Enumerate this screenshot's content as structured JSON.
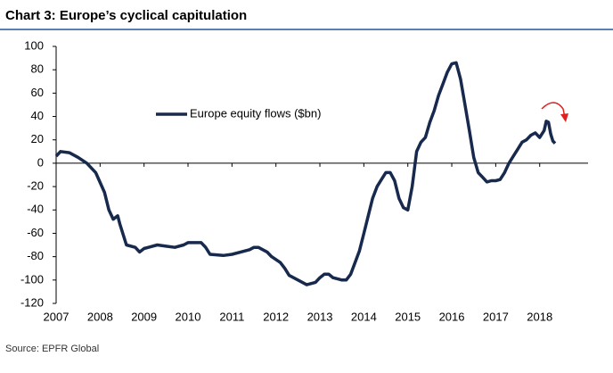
{
  "chart_data": {
    "type": "line",
    "title": "Chart 3: Europe’s cyclical capitulation",
    "source": "Source: EPFR Global",
    "x": [
      2007.0,
      2007.1,
      2007.3,
      2007.5,
      2007.7,
      2007.9,
      2008.1,
      2008.2,
      2008.3,
      2008.4,
      2008.45,
      2008.6,
      2008.8,
      2008.9,
      2009.0,
      2009.1,
      2009.3,
      2009.5,
      2009.7,
      2009.9,
      2010.0,
      2010.3,
      2010.4,
      2010.5,
      2010.8,
      2011.0,
      2011.2,
      2011.4,
      2011.5,
      2011.6,
      2011.8,
      2011.9,
      2012.1,
      2012.2,
      2012.3,
      2012.5,
      2012.7,
      2012.9,
      2013.0,
      2013.1,
      2013.2,
      2013.3,
      2013.5,
      2013.6,
      2013.7,
      2013.8,
      2013.9,
      2014.0,
      2014.1,
      2014.2,
      2014.3,
      2014.4,
      2014.5,
      2014.6,
      2014.7,
      2014.8,
      2014.9,
      2015.0,
      2015.1,
      2015.2,
      2015.3,
      2015.4,
      2015.5,
      2015.6,
      2015.7,
      2015.8,
      2015.9,
      2016.0,
      2016.1,
      2016.2,
      2016.3,
      2016.4,
      2016.5,
      2016.6,
      2016.7,
      2016.8,
      2016.9,
      2017.0,
      2017.1,
      2017.2,
      2017.3,
      2017.4,
      2017.5,
      2017.6,
      2017.7,
      2017.8,
      2017.9,
      2018.0,
      2018.1,
      2018.15,
      2018.2,
      2018.25,
      2018.3,
      2018.35
    ],
    "series": [
      {
        "name": "Europe equity flows ($bn)",
        "color": "#17294d",
        "values": [
          6,
          10,
          9,
          5,
          0,
          -8,
          -25,
          -40,
          -48,
          -45,
          -52,
          -70,
          -72,
          -76,
          -73,
          -72,
          -70,
          -71,
          -72,
          -70,
          -68,
          -68,
          -72,
          -78,
          -79,
          -78,
          -76,
          -74,
          -72,
          -72,
          -76,
          -80,
          -85,
          -90,
          -96,
          -100,
          -104,
          -102,
          -98,
          -95,
          -95,
          -98,
          -100,
          -100,
          -95,
          -85,
          -75,
          -60,
          -45,
          -30,
          -20,
          -14,
          -8,
          -8,
          -15,
          -30,
          -38,
          -40,
          -20,
          10,
          18,
          22,
          35,
          45,
          58,
          68,
          78,
          85,
          86,
          72,
          50,
          28,
          5,
          -8,
          -12,
          -16,
          -15,
          -15,
          -14,
          -8,
          0,
          6,
          12,
          18,
          20,
          24,
          26,
          22,
          28,
          36,
          35,
          25,
          19,
          17
        ]
      }
    ],
    "xlim": [
      2007,
      2019.1
    ],
    "xticks": [
      2007,
      2008,
      2009,
      2010,
      2011,
      2012,
      2013,
      2014,
      2015,
      2016,
      2017,
      2018
    ],
    "ylim": [
      -120,
      100
    ],
    "yticks": [
      -120,
      -100,
      -80,
      -60,
      -40,
      -20,
      0,
      20,
      40,
      60,
      80,
      100
    ]
  }
}
